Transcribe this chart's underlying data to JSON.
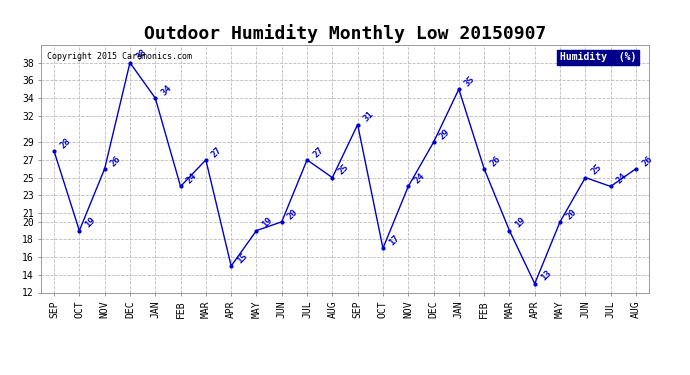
{
  "title": "Outdoor Humidity Monthly Low 20150907",
  "copyright": "Copyright 2015 Caremonics.com",
  "legend_label": "Humidity  (%)",
  "x_labels": [
    "SEP",
    "OCT",
    "NOV",
    "DEC",
    "JAN",
    "FEB",
    "MAR",
    "APR",
    "MAY",
    "JUN",
    "JUL",
    "AUG",
    "SEP",
    "OCT",
    "NOV",
    "DEC",
    "JAN",
    "FEB",
    "MAR",
    "APR",
    "MAY",
    "JUN",
    "JUL",
    "AUG"
  ],
  "y_values": [
    28,
    19,
    26,
    38,
    34,
    24,
    27,
    15,
    19,
    20,
    27,
    25,
    31,
    17,
    24,
    29,
    35,
    26,
    19,
    13,
    20,
    25,
    24,
    26
  ],
  "line_color": "#0000cc",
  "marker_color": "#0000cc",
  "background_color": "#ffffff",
  "plot_bg_color": "#ffffff",
  "grid_color": "#bbbbbb",
  "ylim": [
    12,
    40
  ],
  "yticks": [
    12,
    14,
    16,
    18,
    20,
    21,
    23,
    25,
    27,
    29,
    32,
    34,
    36,
    38
  ],
  "title_fontsize": 13,
  "annotation_fontsize": 6.5,
  "tick_fontsize": 7,
  "legend_bg": "#00008b",
  "legend_text_color": "#ffffff"
}
